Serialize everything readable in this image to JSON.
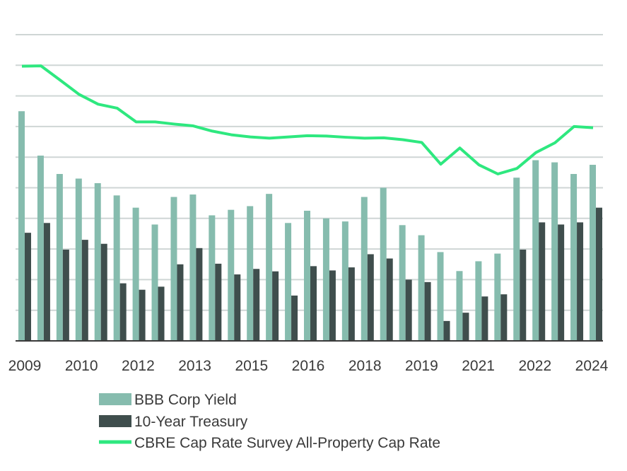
{
  "chart_data": {
    "type": "bar",
    "title": "",
    "xlabel": "",
    "ylabel": "",
    "ylim": [
      0,
      10
    ],
    "grid": true,
    "gridline_count": 10,
    "x_tick_labels": [
      "2009",
      "2010",
      "2012",
      "2013",
      "2015",
      "2016",
      "2018",
      "2019",
      "2021",
      "2022",
      "2024"
    ],
    "series": [
      {
        "name": "BBB Corp Yield",
        "type": "bar",
        "color": "#86bcae",
        "values": [
          7.5,
          6.05,
          5.45,
          5.3,
          5.15,
          4.75,
          4.35,
          3.8,
          4.7,
          4.78,
          4.1,
          4.28,
          4.4,
          4.8,
          3.85,
          4.25,
          4.0,
          3.9,
          4.7,
          5.0,
          3.78,
          3.45,
          2.9,
          2.28,
          2.6,
          2.85,
          5.33,
          5.9,
          5.83,
          5.45,
          5.75
        ]
      },
      {
        "name": "10-Year Treasury",
        "type": "bar",
        "color": "#3f4e4d",
        "values": [
          3.53,
          3.85,
          2.98,
          3.3,
          3.17,
          1.88,
          1.67,
          1.77,
          2.5,
          3.03,
          2.52,
          2.17,
          2.35,
          2.27,
          1.48,
          2.44,
          2.3,
          2.4,
          2.83,
          2.69,
          2.0,
          1.92,
          0.65,
          0.92,
          1.45,
          1.52,
          2.98,
          3.87,
          3.8,
          3.87,
          4.35
        ]
      },
      {
        "name": "CBRE Cap Rate Survey All-Property Cap Rate",
        "type": "line",
        "color": "#2ee87f",
        "values": [
          8.97,
          8.98,
          8.52,
          8.05,
          7.73,
          7.6,
          7.15,
          7.15,
          7.08,
          7.02,
          6.85,
          6.73,
          6.66,
          6.62,
          6.66,
          6.7,
          6.69,
          6.65,
          6.62,
          6.63,
          6.57,
          6.48,
          5.77,
          6.3,
          5.75,
          5.45,
          5.63,
          6.15,
          6.47,
          7.0,
          6.96
        ]
      }
    ],
    "legend": {
      "position": "bottom",
      "entries": [
        "BBB Corp Yield",
        "10-Year Treasury",
        "CBRE Cap Rate Survey All-Property Cap Rate"
      ]
    },
    "colors": {
      "grid": "#cfd6d5",
      "axis": "#3a3a3a",
      "text": "#3a3a3a"
    }
  }
}
